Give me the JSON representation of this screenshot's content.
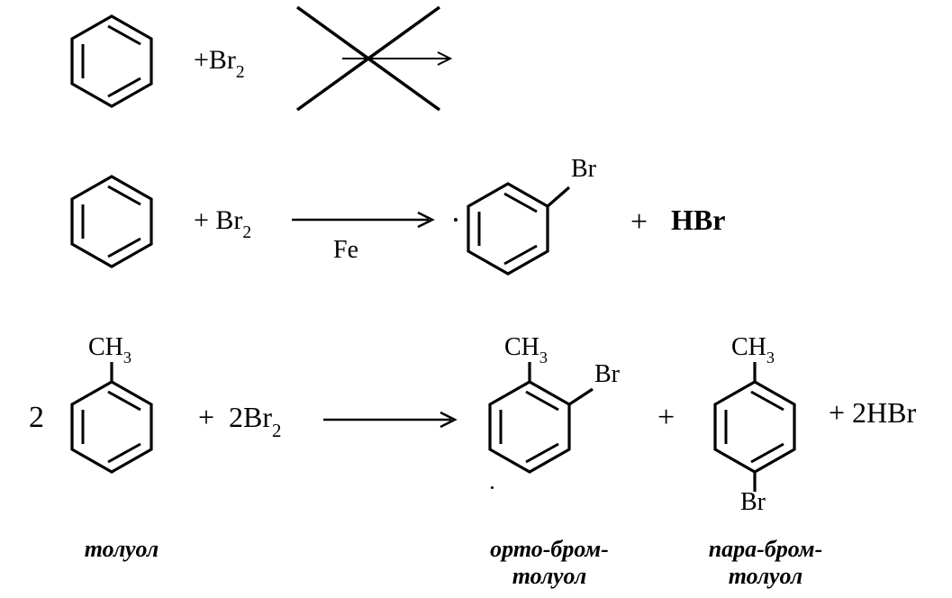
{
  "row1": {
    "reagent": "+Br",
    "reagent_sub": "2"
  },
  "row2": {
    "reagent": "+ Br",
    "reagent_sub": "2",
    "catalyst": "Fe",
    "sub_label": "Br",
    "plus": "+",
    "product2": "HBr"
  },
  "row3": {
    "coeff": "2",
    "ch3": "CH",
    "ch3_sub": "3",
    "reagent_plus": "+",
    "reagent_coeff": "2Br",
    "reagent_sub": "2",
    "ortho_ch3": "CH",
    "ortho_ch3_sub": "3",
    "ortho_br": "Br",
    "plus1": "+",
    "para_ch3": "CH",
    "para_ch3_sub": "3",
    "para_br": "Br",
    "plus2": "+",
    "product2": "2HBr"
  },
  "labels": {
    "toluene": "толуол",
    "ortho": "орто-бром-\nтолуол",
    "para": "пара-бром-\nтолуол"
  },
  "style": {
    "stroke": "#000000",
    "ring_stroke_width": 3.2,
    "arrow_stroke_width": 3,
    "formula_fontsize": 30,
    "label_fontsize": 26,
    "background": "#ffffff"
  }
}
